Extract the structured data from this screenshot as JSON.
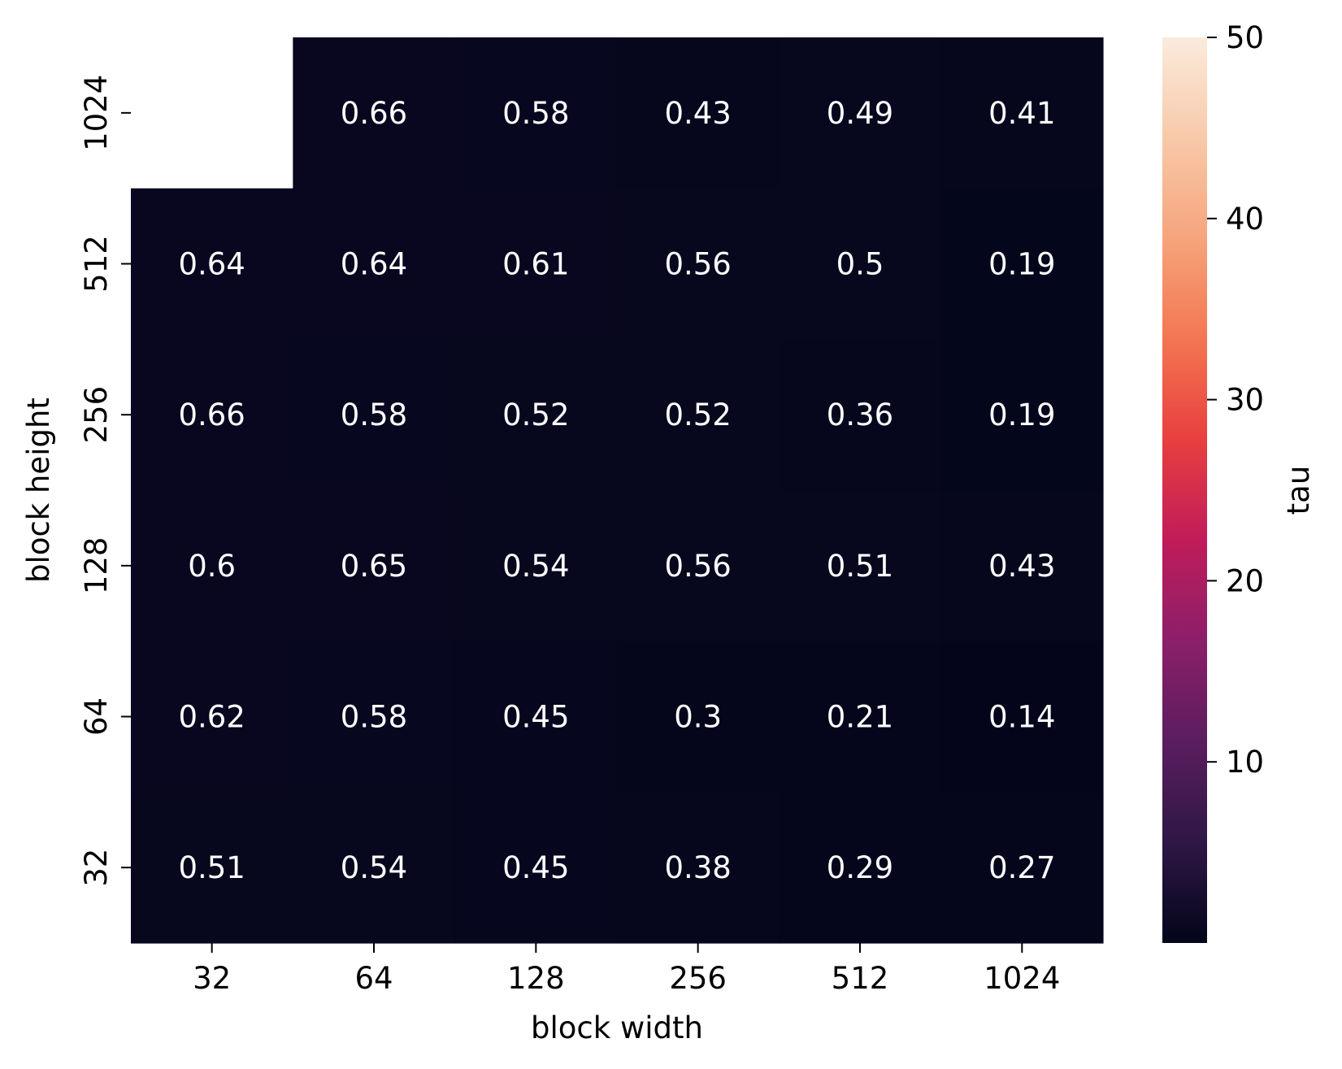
{
  "chart_data": {
    "type": "heatmap",
    "x_categories": [
      "32",
      "64",
      "128",
      "256",
      "512",
      "1024"
    ],
    "y_categories": [
      "1024",
      "512",
      "256",
      "128",
      "64",
      "32"
    ],
    "xlabel": "block width",
    "ylabel": "block height",
    "values": [
      [
        null,
        0.66,
        0.58,
        0.43,
        0.49,
        0.41
      ],
      [
        0.64,
        0.64,
        0.61,
        0.56,
        0.5,
        0.19
      ],
      [
        0.66,
        0.58,
        0.52,
        0.52,
        0.36,
        0.19
      ],
      [
        0.6,
        0.65,
        0.54,
        0.56,
        0.51,
        0.43
      ],
      [
        0.62,
        0.58,
        0.45,
        0.3,
        0.21,
        0.14
      ],
      [
        0.51,
        0.54,
        0.45,
        0.38,
        0.29,
        0.27
      ]
    ],
    "colorbar": {
      "label": "tau",
      "range": [
        0,
        50
      ],
      "ticks": [
        "10",
        "20",
        "30",
        "40",
        "50"
      ],
      "colors": [
        "#03051a",
        "#2e1746",
        "#5a1e5e",
        "#8c1f6a",
        "#c01c59",
        "#e83f3f",
        "#f37651",
        "#f6a47c",
        "#f8c9a9",
        "#faebdd"
      ]
    },
    "grid": false,
    "legend": "colorbar-right"
  }
}
